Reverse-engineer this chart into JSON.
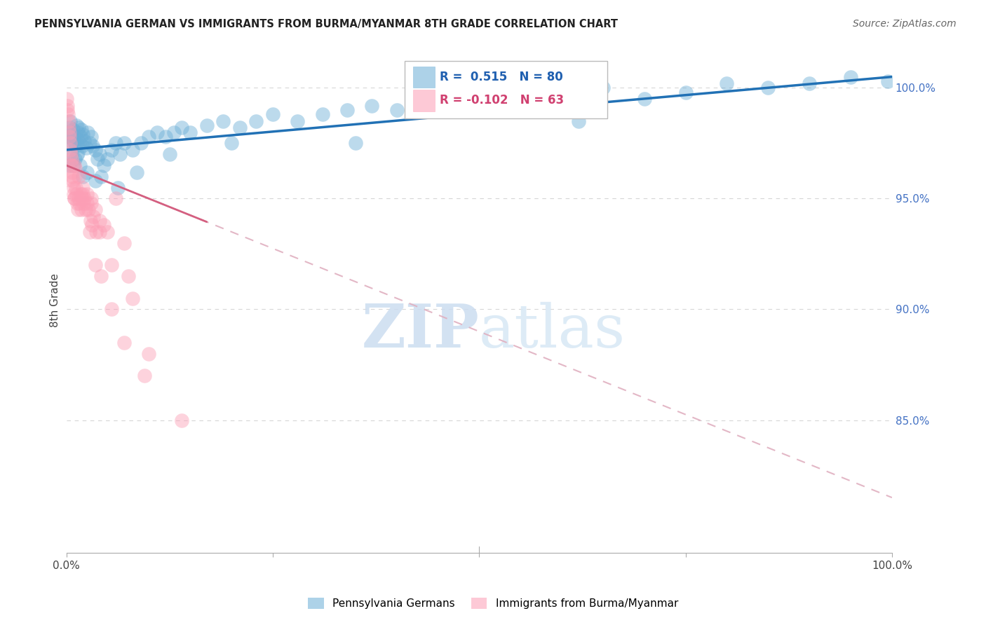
{
  "title": "PENNSYLVANIA GERMAN VS IMMIGRANTS FROM BURMA/MYANMAR 8TH GRADE CORRELATION CHART",
  "source": "Source: ZipAtlas.com",
  "ylabel": "8th Grade",
  "y_ticks": [
    85.0,
    90.0,
    95.0,
    100.0
  ],
  "y_tick_labels": [
    "85.0%",
    "90.0%",
    "95.0%",
    "100.0%"
  ],
  "x_range": [
    0.0,
    100.0
  ],
  "y_range": [
    79.0,
    101.8
  ],
  "watermark_zip": "ZIP",
  "watermark_atlas": "atlas",
  "legend_blue_label": "Pennsylvania Germans",
  "legend_pink_label": "Immigrants from Burma/Myanmar",
  "R_blue": 0.515,
  "N_blue": 80,
  "R_pink": -0.102,
  "N_pink": 63,
  "blue_color": "#6baed6",
  "pink_color": "#fc9eb5",
  "trend_blue_color": "#2171b5",
  "trend_pink_solid_color": "#d45f80",
  "trend_pink_dashed_color": "#e0b0c0",
  "blue_trend_x0": 0.0,
  "blue_trend_y0": 97.2,
  "blue_trend_x1": 100.0,
  "blue_trend_y1": 100.5,
  "pink_trend_x0": 0.0,
  "pink_trend_y0": 96.5,
  "pink_trend_x1": 100.0,
  "pink_trend_y1": 81.5,
  "pink_solid_end_x": 17.0,
  "blue_points_x": [
    0.2,
    0.3,
    0.4,
    0.5,
    0.6,
    0.7,
    0.8,
    0.9,
    1.0,
    1.1,
    1.2,
    1.3,
    1.4,
    1.5,
    1.6,
    1.7,
    1.8,
    1.9,
    2.0,
    2.2,
    2.4,
    2.6,
    2.8,
    3.0,
    3.2,
    3.5,
    3.8,
    4.0,
    4.5,
    5.0,
    5.5,
    6.0,
    6.5,
    7.0,
    8.0,
    9.0,
    10.0,
    11.0,
    12.0,
    13.0,
    14.0,
    15.0,
    17.0,
    19.0,
    21.0,
    23.0,
    25.0,
    28.0,
    31.0,
    34.0,
    37.0,
    40.0,
    45.0,
    50.0,
    55.0,
    60.0,
    65.0,
    70.0,
    75.0,
    80.0,
    85.0,
    90.0,
    95.0,
    99.5,
    0.35,
    0.65,
    0.85,
    1.05,
    1.35,
    1.65,
    1.95,
    2.5,
    3.5,
    4.2,
    6.2,
    8.5,
    12.5,
    20.0,
    35.0,
    62.0
  ],
  "blue_points_y": [
    98.0,
    97.8,
    98.2,
    98.5,
    97.5,
    97.9,
    98.1,
    97.6,
    97.8,
    97.4,
    98.3,
    97.7,
    98.0,
    98.2,
    97.5,
    97.8,
    98.1,
    97.4,
    97.9,
    97.6,
    97.3,
    98.0,
    97.5,
    97.8,
    97.4,
    97.2,
    96.8,
    97.0,
    96.5,
    96.8,
    97.2,
    97.5,
    97.0,
    97.5,
    97.2,
    97.5,
    97.8,
    98.0,
    97.8,
    98.0,
    98.2,
    98.0,
    98.3,
    98.5,
    98.2,
    98.5,
    98.8,
    98.5,
    98.8,
    99.0,
    99.2,
    99.0,
    99.5,
    99.2,
    99.5,
    99.8,
    100.0,
    99.5,
    99.8,
    100.2,
    100.0,
    100.2,
    100.5,
    100.3,
    96.5,
    97.0,
    96.5,
    96.8,
    97.0,
    96.5,
    96.0,
    96.2,
    95.8,
    96.0,
    95.5,
    96.2,
    97.0,
    97.5,
    97.5,
    98.5
  ],
  "pink_points_x": [
    0.05,
    0.1,
    0.15,
    0.2,
    0.25,
    0.3,
    0.35,
    0.4,
    0.45,
    0.5,
    0.55,
    0.6,
    0.65,
    0.7,
    0.75,
    0.8,
    0.85,
    0.9,
    0.95,
    1.0,
    1.1,
    1.2,
    1.3,
    1.4,
    1.5,
    1.6,
    1.7,
    1.8,
    1.9,
    2.0,
    2.1,
    2.2,
    2.3,
    2.5,
    2.7,
    2.9,
    3.1,
    3.3,
    3.6,
    4.0,
    4.5,
    5.0,
    6.0,
    7.0,
    8.0,
    1.0,
    1.5,
    2.0,
    2.5,
    3.0,
    3.5,
    4.0,
    5.5,
    7.5,
    10.0,
    14.0,
    3.0,
    2.8,
    3.5,
    4.2,
    5.5,
    7.0,
    9.5
  ],
  "pink_points_y": [
    99.5,
    99.2,
    99.0,
    98.8,
    98.5,
    98.2,
    98.0,
    97.8,
    97.5,
    97.2,
    97.0,
    96.8,
    96.5,
    96.2,
    96.0,
    95.8,
    95.5,
    95.2,
    95.0,
    95.0,
    95.5,
    95.2,
    94.8,
    94.5,
    95.0,
    94.8,
    95.2,
    94.5,
    95.0,
    95.2,
    94.8,
    95.0,
    94.5,
    94.8,
    94.5,
    94.0,
    93.8,
    94.2,
    93.5,
    93.5,
    93.8,
    93.5,
    95.0,
    93.0,
    90.5,
    96.5,
    96.0,
    95.5,
    95.2,
    95.0,
    94.5,
    94.0,
    92.0,
    91.5,
    88.0,
    85.0,
    94.8,
    93.5,
    92.0,
    91.5,
    90.0,
    88.5,
    87.0
  ],
  "big_blue_x": 0.25,
  "big_blue_y": 97.2,
  "big_blue_size": 1200,
  "big_pink_x": 0.3,
  "big_pink_y": 96.2,
  "big_pink_size": 900,
  "grid_color": "#cccccc",
  "spine_color": "#aaaaaa"
}
